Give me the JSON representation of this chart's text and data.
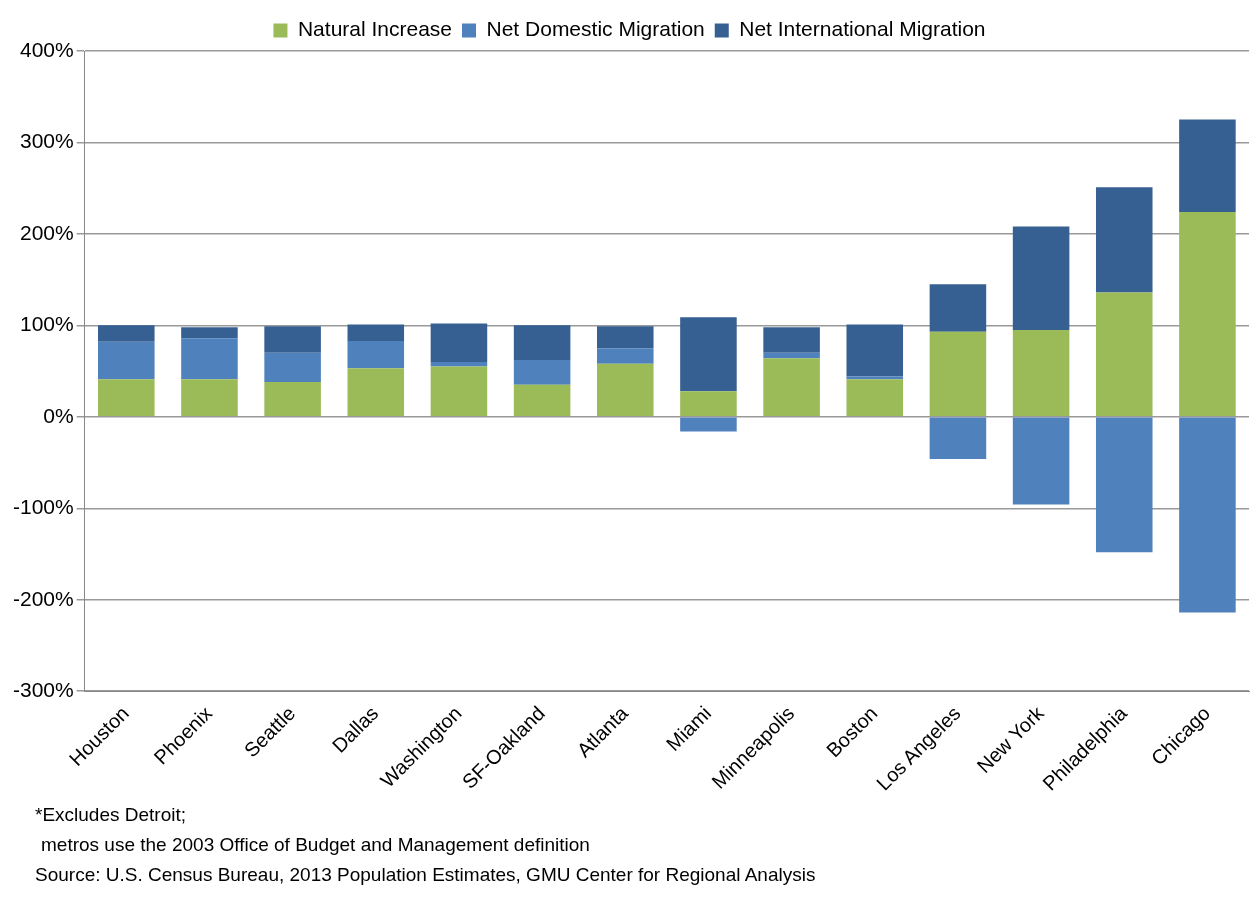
{
  "chart_data": {
    "type": "bar",
    "stacked": true,
    "categories": [
      "Houston",
      "Phoenix",
      "Seattle",
      "Dallas",
      "Washington",
      "SF-Oakland",
      "Atlanta",
      "Miami",
      "Minneapolis",
      "Boston",
      "Los Angeles",
      "New York",
      "Philadelphia",
      "Chicago"
    ],
    "series": [
      {
        "name": "Natural Increase",
        "color": "#9bbb59",
        "values": [
          41,
          41,
          38,
          53,
          55,
          35,
          58,
          28,
          64,
          41,
          93,
          95,
          136,
          224
        ]
      },
      {
        "name": "Net Domestic Migration",
        "color": "#4f81bd",
        "values": [
          41,
          45,
          32,
          30,
          5,
          27,
          17,
          -16,
          6,
          3,
          -46,
          -96,
          -148,
          -214
        ]
      },
      {
        "name": "Net International Migration",
        "color": "#366092",
        "values": [
          18,
          12,
          29,
          18,
          42,
          38,
          24,
          81,
          28,
          57,
          52,
          113,
          115,
          101
        ]
      }
    ],
    "ylim": [
      -300,
      400
    ],
    "yticks": [
      {
        "value": -300,
        "label": "-300%"
      },
      {
        "value": -200,
        "label": "-200%"
      },
      {
        "value": -100,
        "label": "-100%"
      },
      {
        "value": 0,
        "label": "0%"
      },
      {
        "value": 100,
        "label": "100%"
      },
      {
        "value": 200,
        "label": "200%"
      },
      {
        "value": 300,
        "label": "300%"
      },
      {
        "value": 400,
        "label": "400%"
      }
    ],
    "grid": "y",
    "legend": "top",
    "annotations": [
      "*Excludes Detroit;",
      "metros use the 2003 Office of Budget and Management definition",
      "Source: U.S. Census Bureau, 2013 Population Estimates, GMU Center for Regional Analysis"
    ]
  }
}
